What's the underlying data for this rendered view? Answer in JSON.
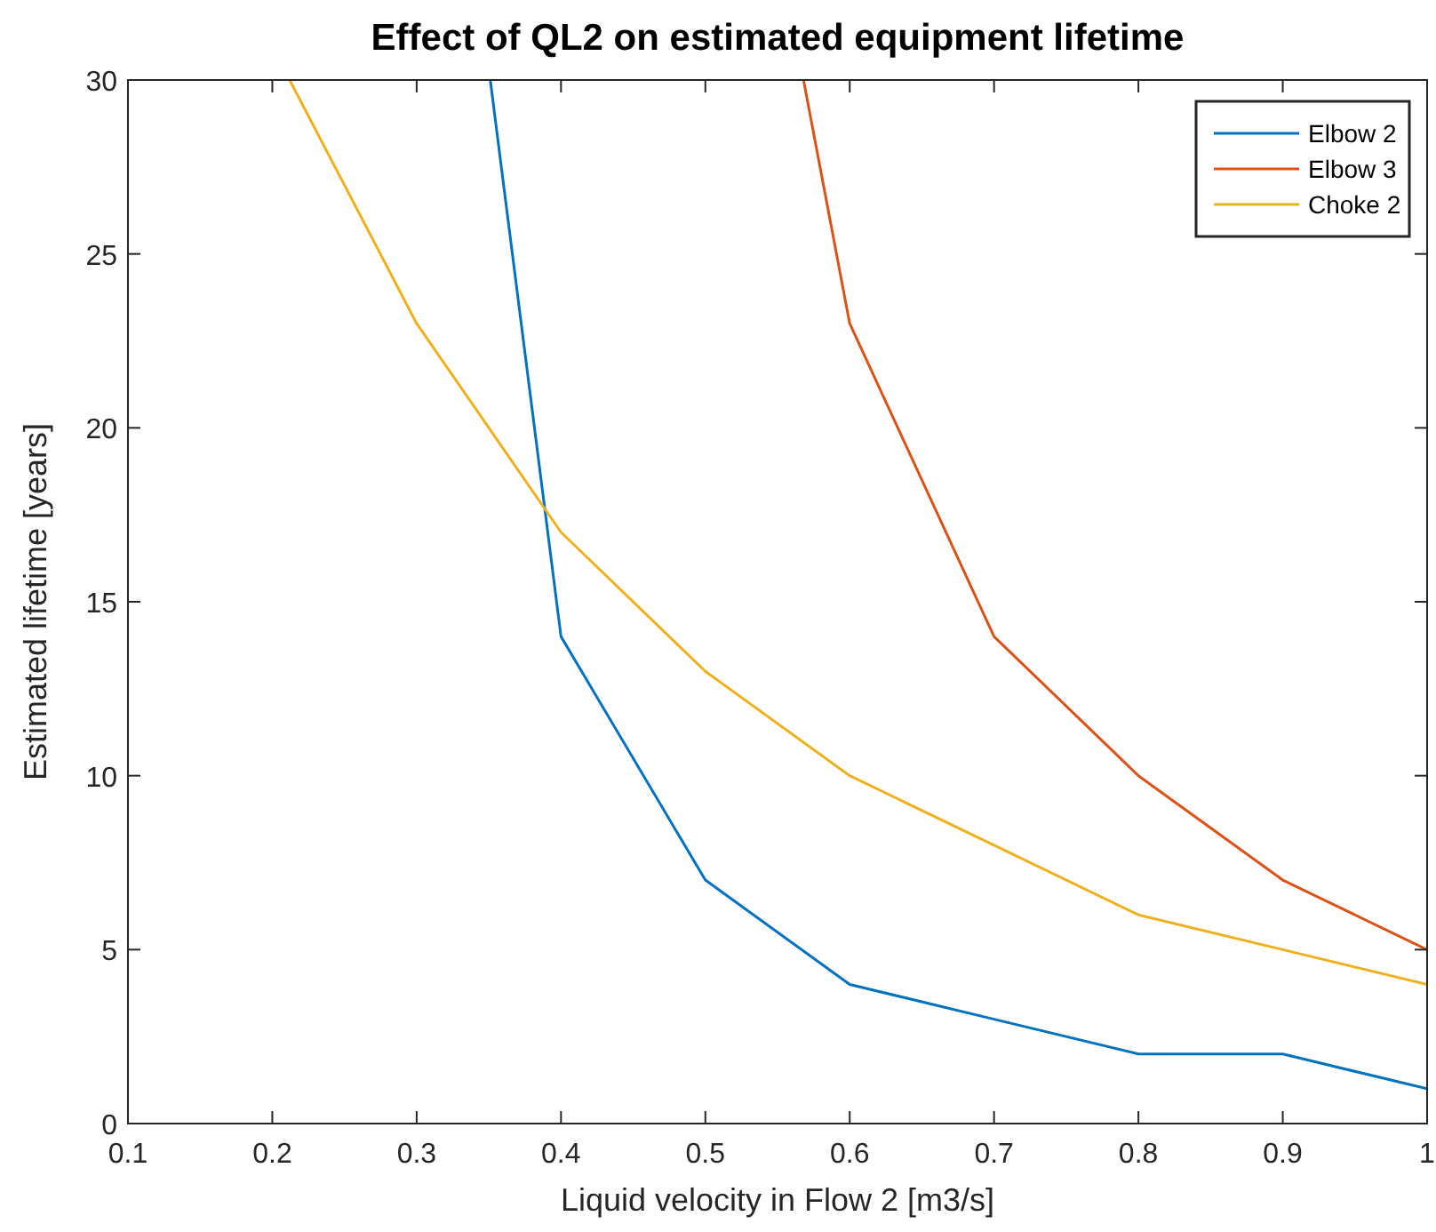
{
  "chart_data": {
    "type": "line",
    "title": "Effect of QL2 on estimated equipment lifetime",
    "xlabel": "Liquid velocity in Flow 2 [m3/s]",
    "ylabel": "Estimated lifetime [years]",
    "xlim": [
      0.1,
      1
    ],
    "ylim": [
      0,
      30
    ],
    "xticks": [
      0.1,
      0.2,
      0.3,
      0.4,
      0.5,
      0.6,
      0.7,
      0.8,
      0.9,
      1
    ],
    "yticks": [
      0,
      5,
      10,
      15,
      20,
      25,
      30
    ],
    "grid": false,
    "legend": "top right",
    "line_style": "solid",
    "series": [
      {
        "name": "Elbow 2",
        "color": "#0072bd",
        "x": [
          0.351,
          0.4,
          0.5,
          0.6,
          0.7,
          0.8,
          0.9,
          1
        ],
        "values": [
          30,
          14,
          7,
          4,
          3,
          2,
          2,
          1
        ]
      },
      {
        "name": "Elbow 3",
        "color": "#d95319",
        "x": [
          0.568,
          0.6,
          0.7,
          0.8,
          0.9,
          1
        ],
        "values": [
          30,
          23,
          14,
          10,
          7,
          5
        ]
      },
      {
        "name": "Choke 2",
        "color": "#edb120",
        "x": [
          0.212,
          0.3,
          0.4,
          0.5,
          0.6,
          0.7,
          0.8,
          0.9,
          1
        ],
        "values": [
          30,
          23,
          17,
          13,
          10,
          8,
          6,
          5,
          4
        ]
      }
    ]
  }
}
